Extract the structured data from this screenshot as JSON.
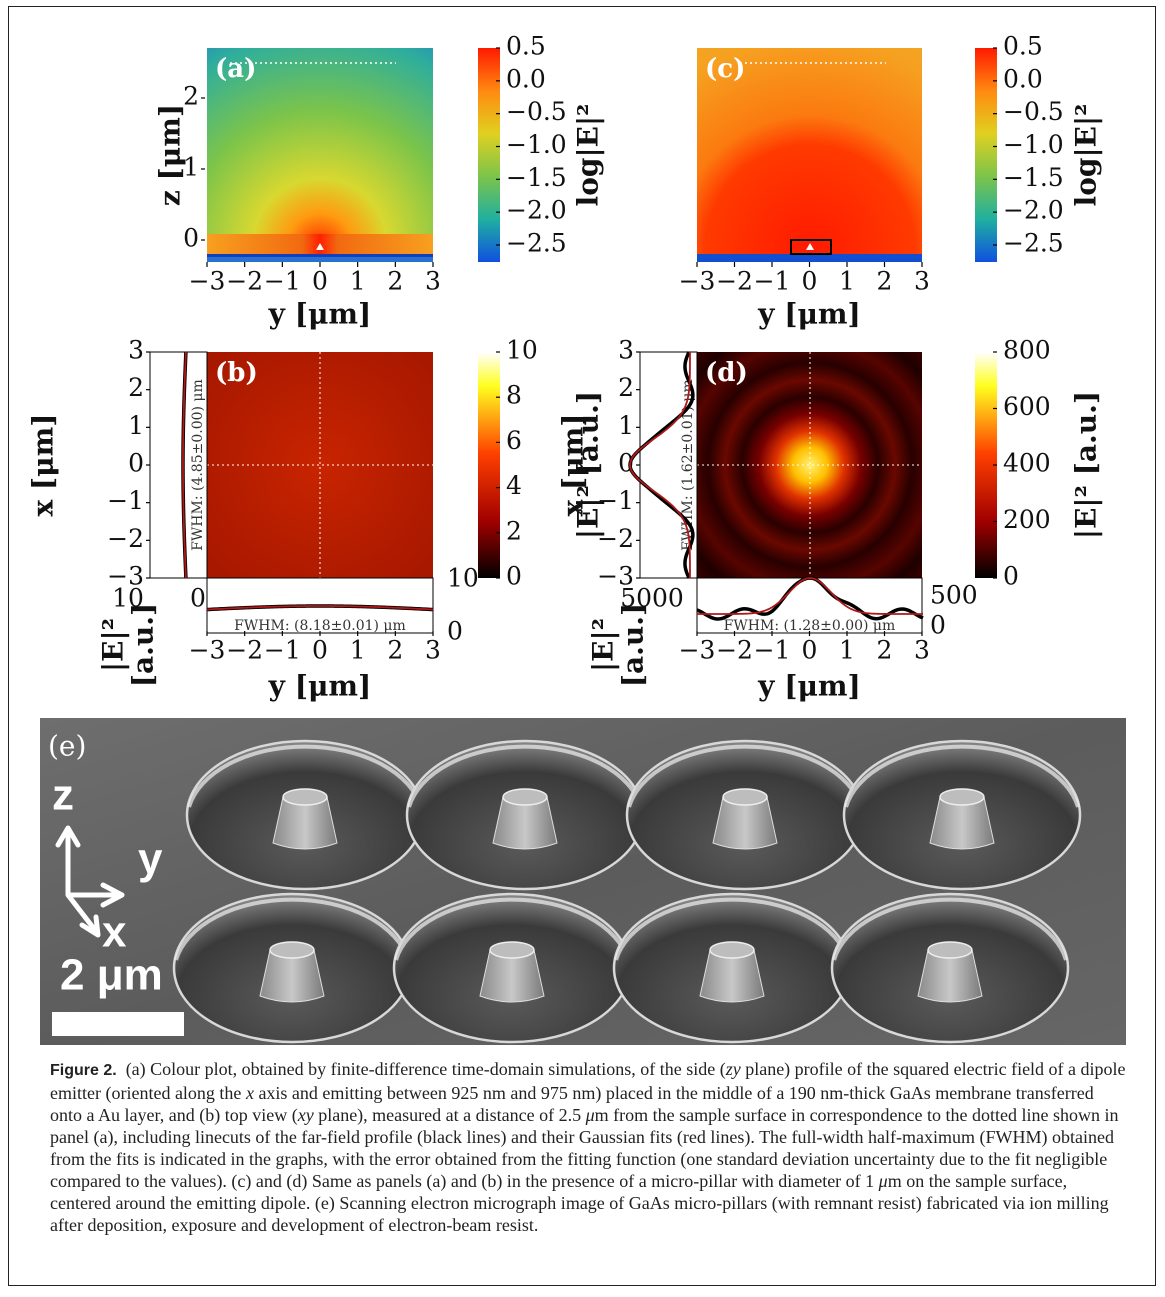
{
  "panel_a": {
    "label": "(a)",
    "x_ticks": [
      "−3",
      "−2",
      "−1",
      "0",
      "1",
      "2",
      "3"
    ],
    "y_ticks": [
      "0",
      "1",
      "2"
    ],
    "x_label": "y [μm]",
    "y_label": "z [μm]",
    "colorbar_ticks": [
      "0.5",
      "0.0",
      "−0.5",
      "−1.0",
      "−1.5",
      "−2.0",
      "−2.5"
    ],
    "colorbar_label": "log|E|²"
  },
  "panel_c": {
    "label": "(c)",
    "x_ticks": [
      "−3",
      "−2",
      "−1",
      "0",
      "1",
      "2",
      "3"
    ],
    "x_label": "y [μm]",
    "colorbar_ticks": [
      "0.5",
      "0.0",
      "−0.5",
      "−1.0",
      "−1.5",
      "−2.0",
      "−2.5"
    ],
    "colorbar_label": "log|E|²"
  },
  "panel_b": {
    "label": "(b)",
    "x_ticks": [
      "−3",
      "−2",
      "−1",
      "0",
      "1",
      "2",
      "3"
    ],
    "y_ticks": [
      "3",
      "2",
      "1",
      "0",
      "−1",
      "−2",
      "−3"
    ],
    "x_label": "y [μm]",
    "y_label": "x [μm]",
    "colorbar_ticks": [
      "10",
      "8",
      "6",
      "4",
      "2",
      "0"
    ],
    "colorbar_label": "|E|² [a.u.]",
    "side_fwhm": "FWHM: (4.85±0.00) μm",
    "bottom_fwhm": "FWHM: (8.18±0.01) μm",
    "side_ticks": [
      "10",
      "0"
    ],
    "bottom_ticks": [
      "10",
      "0"
    ],
    "linecut_label": [
      "|E|²",
      "[a.u.]"
    ]
  },
  "panel_d": {
    "label": "(d)",
    "x_ticks": [
      "−3",
      "−2",
      "−1",
      "0",
      "1",
      "2",
      "3"
    ],
    "y_ticks": [
      "3",
      "2",
      "1",
      "0",
      "−1",
      "−2",
      "−3"
    ],
    "x_label": "y [μm]",
    "y_label": "x [μm]",
    "colorbar_ticks": [
      "800",
      "600",
      "400",
      "200",
      "0"
    ],
    "colorbar_label": "|E|² [a.u.]",
    "side_fwhm": "FWHM: (1.62±0.01) μm",
    "bottom_fwhm": "FWHM: (1.28±0.00) μm",
    "side_ticks": [
      "5000"
    ],
    "bottom_ticks": [
      "500",
      "0"
    ],
    "linecut_label": [
      "|E|²",
      "[a.u.]"
    ]
  },
  "panel_e": {
    "label": "(e)",
    "axis_z": "z",
    "axis_y": "y",
    "axis_x": "x",
    "scale_bar": "2 μm"
  },
  "caption": {
    "label": "Figure 2.",
    "segments": [
      "(a) Colour plot, obtained by finite-difference time-domain simulations, of the side (",
      "zy",
      " plane) profile of the squared electric field of a dipole emitter (oriented along the ",
      "x",
      " axis and emitting between 925 nm and 975 nm) placed in the middle of a 190 nm-thick GaAs membrane transferred onto a Au layer, and (b) top view (",
      "xy",
      " plane), measured at a distance of 2.5 ",
      "μ",
      "m from the sample surface in correspondence to the dotted line shown in panel (a), including linecuts of the far-field profile (black lines) and their Gaussian fits (red lines). The full-width half-maximum (FWHM) obtained from the fits is indicated in the graphs, with the error obtained from the fitting function (one standard deviation uncertainty due to the fit negligible compared to the values). (c) and (d) Same as panels (a) and (b) in the presence of a micro-pillar with diameter of 1 ",
      "μ",
      "m on the sample surface, centered around the emitting dipole. (e) Scanning electron micrograph image of GaAs micro-pillars (with remnant resist) fabricated via ion milling after deposition, exposure and development of electron-beam resist."
    ]
  }
}
